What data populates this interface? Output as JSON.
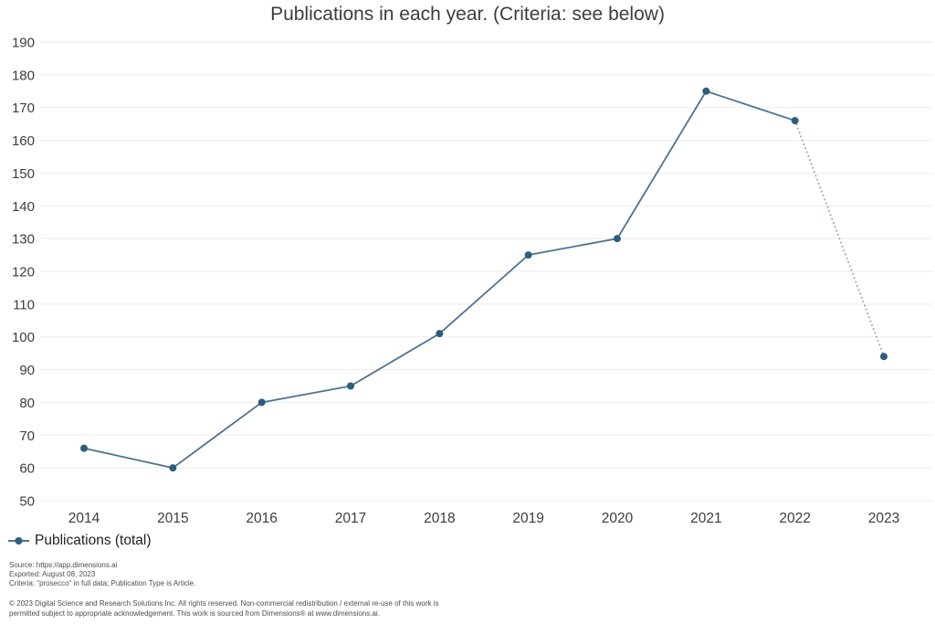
{
  "chart_data": {
    "type": "line",
    "title": "Publications in each year. (Criteria: see below)",
    "categories": [
      "2014",
      "2015",
      "2016",
      "2017",
      "2018",
      "2019",
      "2020",
      "2021",
      "2022",
      "2023"
    ],
    "series": [
      {
        "name": "Publications (total)",
        "values": [
          66,
          60,
          80,
          85,
          101,
          125,
          130,
          175,
          166,
          94
        ]
      }
    ],
    "ylim": [
      50,
      190
    ],
    "ytick_step": 10,
    "yticks": [
      50,
      60,
      70,
      80,
      90,
      100,
      110,
      120,
      130,
      140,
      150,
      160,
      170,
      180,
      190
    ],
    "grid": "horizontal gridlines only",
    "legend_position": "bottom-left",
    "dotted_segment": {
      "from": "2022",
      "to": "2023"
    },
    "colors": {
      "line": "#4d7390",
      "marker": "#2b5e7d",
      "dotted_line": "#99aab4",
      "grid": "#efefef",
      "tick_text": "#3d3d3d",
      "title_text": "#3d3d3d"
    }
  },
  "legend": {
    "label": "Publications (total)"
  },
  "footnotes": {
    "lines": [
      "Source: https://app.dimensions.ai",
      "Exported: August 08, 2023",
      "Criteria: \"prosecco\" in full data; Publication Type is Article."
    ]
  },
  "copyright": {
    "lines": [
      "© 2023 Digital Science and Research Solutions Inc. All rights reserved. Non-commercial redistribution / external re-use of this work is",
      "permitted subject to appropriate acknowledgement. This work is sourced from Dimensions® at www.dimensions.ai."
    ]
  }
}
